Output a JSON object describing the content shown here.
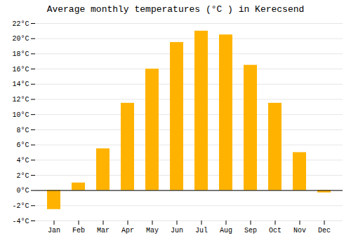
{
  "chart_data": {
    "type": "bar",
    "title": "Average monthly temperatures (°C ) in Kerecsend",
    "categories": [
      "Jan",
      "Feb",
      "Mar",
      "Apr",
      "May",
      "Jun",
      "Jul",
      "Aug",
      "Sep",
      "Oct",
      "Nov",
      "Dec"
    ],
    "values": [
      -2.5,
      1.0,
      5.5,
      11.5,
      16.0,
      19.5,
      21.0,
      20.5,
      16.5,
      11.5,
      5.0,
      -0.3
    ],
    "color": "#FFB300",
    "ylim": [
      -4,
      22
    ],
    "yticks": [
      {
        "value": -4,
        "label": "-4°C"
      },
      {
        "value": -2,
        "label": "-2°C"
      },
      {
        "value": 0,
        "label": "0°C"
      },
      {
        "value": 2,
        "label": "2°C"
      },
      {
        "value": 4,
        "label": "4°C"
      },
      {
        "value": 6,
        "label": "6°C"
      },
      {
        "value": 8,
        "label": "8°C"
      },
      {
        "value": 10,
        "label": "10°C"
      },
      {
        "value": 12,
        "label": "12°C"
      },
      {
        "value": 14,
        "label": "14°C"
      },
      {
        "value": 16,
        "label": "16°C"
      },
      {
        "value": 18,
        "label": "18°C"
      },
      {
        "value": 20,
        "label": "20°C"
      },
      {
        "value": 22,
        "label": "22°C"
      }
    ],
    "grid": true
  }
}
